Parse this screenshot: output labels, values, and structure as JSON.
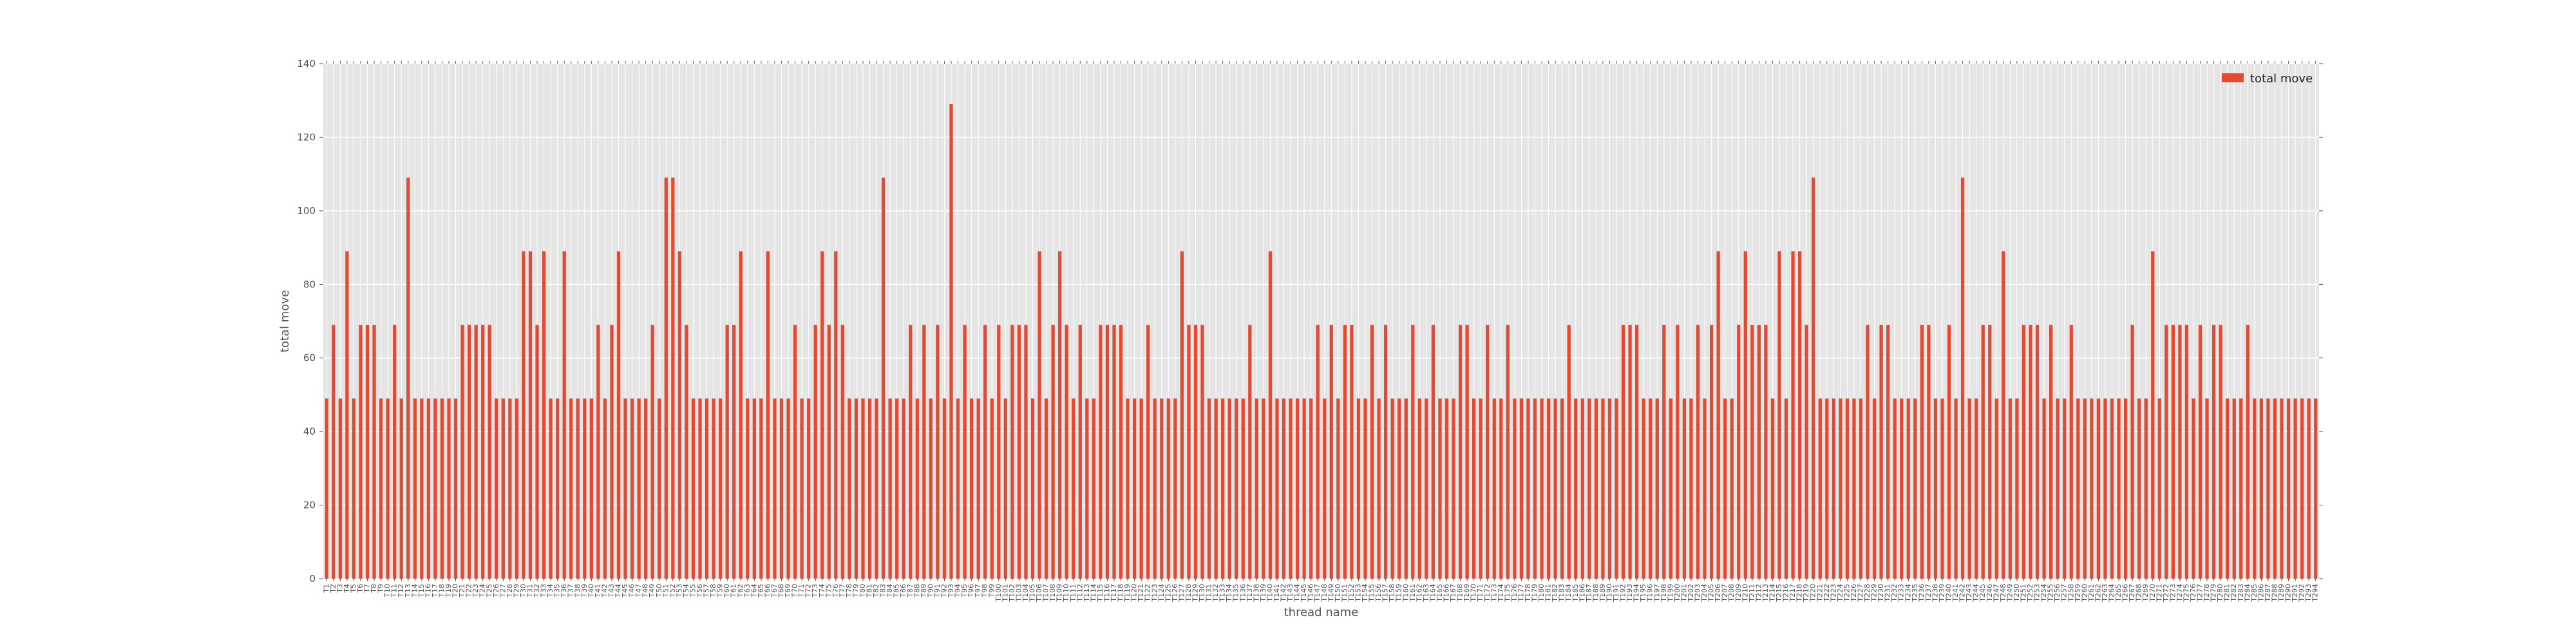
{
  "chart_data": {
    "type": "bar",
    "title": "",
    "xlabel": "thread name",
    "ylabel": "total move",
    "ylim": [
      0,
      140
    ],
    "yticks": [
      0,
      20,
      40,
      60,
      80,
      100,
      120,
      140
    ],
    "grid": true,
    "legend_position": "top-right",
    "colors": {
      "bar": "#e24a33",
      "plot_background": "#e5e5e5",
      "grid": "#ffffff",
      "text": "#555555"
    },
    "category_prefix": "T",
    "category_start": 1,
    "series": [
      {
        "name": "total move",
        "values": [
          49,
          69,
          49,
          89,
          49,
          69,
          69,
          69,
          49,
          49,
          69,
          49,
          109,
          49,
          49,
          49,
          49,
          49,
          49,
          49,
          69,
          69,
          69,
          69,
          69,
          49,
          49,
          49,
          49,
          89,
          89,
          69,
          89,
          49,
          49,
          89,
          49,
          49,
          49,
          49,
          69,
          49,
          69,
          89,
          49,
          49,
          49,
          49,
          69,
          49,
          109,
          109,
          89,
          69,
          49,
          49,
          49,
          49,
          49,
          69,
          69,
          89,
          49,
          49,
          49,
          89,
          49,
          49,
          49,
          69,
          49,
          49,
          69,
          89,
          69,
          89,
          69,
          49,
          49,
          49,
          49,
          49,
          109,
          49,
          49,
          49,
          69,
          49,
          69,
          49,
          69,
          49,
          129,
          49,
          69,
          49,
          49,
          69,
          49,
          69,
          49,
          69,
          69,
          69,
          49,
          89,
          49,
          69,
          89,
          69,
          49,
          69,
          49,
          49,
          69,
          69,
          69,
          69,
          49,
          49,
          49,
          69,
          49,
          49,
          49,
          49,
          89,
          69,
          69,
          69,
          49,
          49,
          49,
          49,
          49,
          49,
          69,
          49,
          49,
          89,
          49,
          49,
          49,
          49,
          49,
          49,
          69,
          49,
          69,
          49,
          69,
          69,
          49,
          49,
          69,
          49,
          69,
          49,
          49,
          49,
          69,
          49,
          49,
          69,
          49,
          49,
          49,
          69,
          69,
          49,
          49,
          69,
          49,
          49,
          69,
          49,
          49,
          49,
          49,
          49,
          49,
          49,
          49,
          69,
          49,
          49,
          49,
          49,
          49,
          49,
          49,
          69,
          69,
          69,
          49,
          49,
          49,
          69,
          49,
          69,
          49,
          49,
          69,
          49,
          69,
          89,
          49,
          49,
          69,
          89,
          69,
          69,
          69,
          49,
          89,
          49,
          89,
          89,
          69,
          109,
          49,
          49,
          49,
          49,
          49,
          49,
          49,
          69,
          49,
          69,
          69,
          49,
          49,
          49,
          49,
          69,
          69,
          49,
          49,
          69,
          49,
          109,
          49,
          49,
          69,
          69,
          49,
          89,
          49,
          49,
          69,
          69,
          69,
          49,
          69,
          49,
          49,
          69,
          49,
          49,
          49,
          49,
          49,
          49,
          49,
          49,
          69,
          49,
          49,
          89,
          49,
          69,
          69,
          69,
          69,
          49,
          69,
          49,
          69,
          69,
          49,
          49,
          49,
          69,
          49,
          49,
          49,
          49,
          49,
          49,
          49,
          49,
          49,
          49
        ]
      }
    ]
  }
}
